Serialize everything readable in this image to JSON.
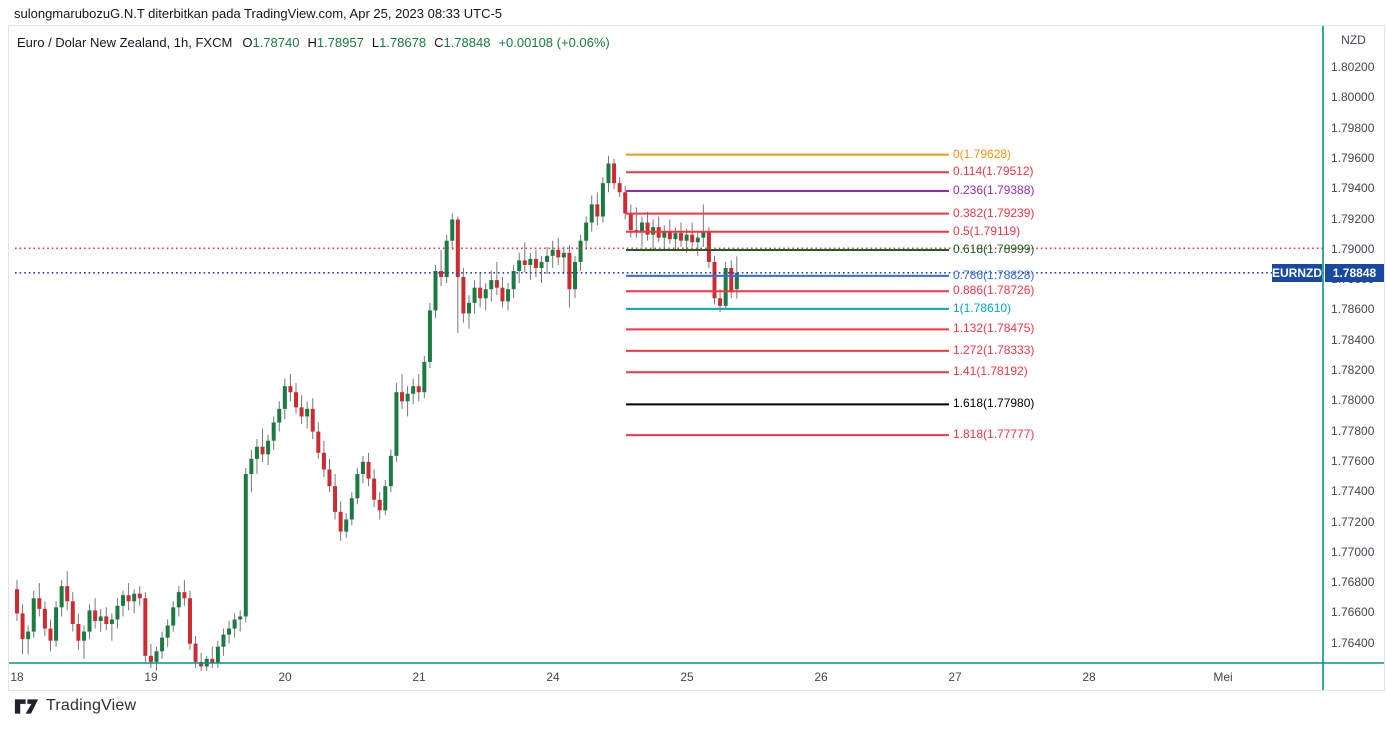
{
  "attribution": {
    "text": "sulongmarubozuG.N.T diterbitkan pada TradingView.com, Apr 25, 2023 08:33 UTC-5"
  },
  "header": {
    "symbol_title": "Euro / Dolar New Zealand, 1h, FXCM",
    "ohlc": {
      "o_label": "O",
      "o_value": "1.78740",
      "h_label": "H",
      "h_value": "1.78957",
      "l_label": "L",
      "l_value": "1.78678",
      "c_label": "C",
      "c_value": "1.78848",
      "change": "+0.00108 (+0.06%)"
    }
  },
  "price_axis": {
    "currency_label": "NZD",
    "tick_labels": [
      "1.80200",
      "1.80000",
      "1.79800",
      "1.79600",
      "1.79400",
      "1.79200",
      "1.79000",
      "1.78800",
      "1.78600",
      "1.78400",
      "1.78200",
      "1.78000",
      "1.77800",
      "1.77600",
      "1.77400",
      "1.77200",
      "1.77000",
      "1.76800",
      "1.76600",
      "1.76400"
    ]
  },
  "time_axis": {
    "tick_labels": [
      "18",
      "19",
      "20",
      "21",
      "24",
      "25",
      "26",
      "27",
      "28",
      "Mei"
    ]
  },
  "price_badge": {
    "symbol": "EURNZD",
    "price": "1.78848"
  },
  "logo": {
    "text": "TradingView"
  },
  "colors": {
    "up": "#1a7a42",
    "down": "#cc2b31",
    "wick": "#76787d",
    "axis_teal": "#009688",
    "badge_blue": "#1849a0",
    "text_dark": "#131722",
    "axis_text": "#434651"
  },
  "chart_data": {
    "type": "candlestick",
    "title": "Euro / Dolar New Zealand, 1h, FXCM",
    "symbol": "EURNZD",
    "exchange": "FXCM",
    "timeframe": "1h",
    "last_price": 1.78848,
    "y_axis": {
      "label": "NZD",
      "tick_min": 1.764,
      "tick_max": 1.802,
      "tick_step": 0.002,
      "grid": false
    },
    "x_axis": {
      "labels": [
        "18",
        "19",
        "20",
        "21",
        "24",
        "25",
        "26",
        "27",
        "28",
        "Mei"
      ],
      "bars_per_day": 24,
      "legend_position": "none"
    },
    "price_lines": [
      {
        "name": "red-dotted-price-line",
        "price": 1.7901,
        "color": "#e03c3c",
        "style": "dotted"
      },
      {
        "name": "current-price-line",
        "price": 1.78848,
        "color": "#2a3f9e",
        "style": "dotted"
      }
    ],
    "fib_levels": [
      {
        "level": "0",
        "price": "1.79628",
        "color": "#f39515"
      },
      {
        "level": "0.114",
        "price": "1.79512",
        "color": "#f23645"
      },
      {
        "level": "0.236",
        "price": "1.79388",
        "color": "#9c27b0"
      },
      {
        "level": "0.382",
        "price": "1.79239",
        "color": "#f23645"
      },
      {
        "level": "0.5",
        "price": "1.79119",
        "color": "#f23645"
      },
      {
        "level": "0.618",
        "price": "1.78999",
        "color": "#1b5e20"
      },
      {
        "level": "0.786",
        "price": "1.78828",
        "color": "#2f6ce5"
      },
      {
        "level": "0.886",
        "price": "1.78726",
        "color": "#f23645"
      },
      {
        "level": "1",
        "price": "1.78610",
        "color": "#00a7c4"
      },
      {
        "level": "1.132",
        "price": "1.78475",
        "color": "#f23645"
      },
      {
        "level": "1.272",
        "price": "1.78333",
        "color": "#f23645"
      },
      {
        "level": "1.41",
        "price": "1.78192",
        "color": "#f23645"
      },
      {
        "level": "1.618",
        "price": "1.77980",
        "color": "#000000"
      },
      {
        "level": "1.818",
        "price": "1.77777",
        "color": "#f23645"
      }
    ],
    "candles": [
      [
        1.7676,
        1.7682,
        1.7655,
        1.766
      ],
      [
        1.766,
        1.7666,
        1.7633,
        1.7643
      ],
      [
        1.7643,
        1.7652,
        1.7633,
        1.7648
      ],
      [
        1.7648,
        1.7675,
        1.7644,
        1.767
      ],
      [
        1.767,
        1.768,
        1.7658,
        1.7663
      ],
      [
        1.7663,
        1.7668,
        1.7645,
        1.765
      ],
      [
        1.765,
        1.7656,
        1.7635,
        1.7642
      ],
      [
        1.7642,
        1.7668,
        1.7638,
        1.7664
      ],
      [
        1.7664,
        1.7682,
        1.7658,
        1.7678
      ],
      [
        1.7678,
        1.7688,
        1.7662,
        1.7668
      ],
      [
        1.7668,
        1.7674,
        1.7648,
        1.7653
      ],
      [
        1.7653,
        1.766,
        1.7636,
        1.7642
      ],
      [
        1.7642,
        1.7652,
        1.763,
        1.7648
      ],
      [
        1.7648,
        1.7666,
        1.7643,
        1.7662
      ],
      [
        1.7662,
        1.767,
        1.765,
        1.7655
      ],
      [
        1.7655,
        1.7663,
        1.7648,
        1.7658
      ],
      [
        1.7658,
        1.7664,
        1.7649,
        1.7653
      ],
      [
        1.7653,
        1.766,
        1.7642,
        1.7656
      ],
      [
        1.7656,
        1.767,
        1.765,
        1.7665
      ],
      [
        1.7665,
        1.7675,
        1.7658,
        1.7672
      ],
      [
        1.7672,
        1.768,
        1.7662,
        1.7668
      ],
      [
        1.7668,
        1.7676,
        1.766,
        1.7673
      ],
      [
        1.7673,
        1.7678,
        1.7665,
        1.767
      ],
      [
        1.767,
        1.7674,
        1.7628,
        1.7632
      ],
      [
        1.7632,
        1.764,
        1.7624,
        1.7628
      ],
      [
        1.7628,
        1.7638,
        1.7622,
        1.7635
      ],
      [
        1.7635,
        1.7648,
        1.763,
        1.7644
      ],
      [
        1.7644,
        1.7656,
        1.7638,
        1.7652
      ],
      [
        1.7652,
        1.7668,
        1.7648,
        1.7664
      ],
      [
        1.7664,
        1.7678,
        1.7658,
        1.7674
      ],
      [
        1.7674,
        1.7682,
        1.7665,
        1.767
      ],
      [
        1.767,
        1.7675,
        1.7636,
        1.764
      ],
      [
        1.764,
        1.7645,
        1.7624,
        1.7628
      ],
      [
        1.7628,
        1.7634,
        1.7622,
        1.7625
      ],
      [
        1.7625,
        1.7632,
        1.7622,
        1.763
      ],
      [
        1.763,
        1.7638,
        1.7624,
        1.7627
      ],
      [
        1.7627,
        1.7642,
        1.7624,
        1.7638
      ],
      [
        1.7638,
        1.765,
        1.7632,
        1.7646
      ],
      [
        1.7646,
        1.7655,
        1.764,
        1.765
      ],
      [
        1.765,
        1.766,
        1.7644,
        1.7656
      ],
      [
        1.7656,
        1.7662,
        1.7648,
        1.7658
      ],
      [
        1.7658,
        1.7756,
        1.7654,
        1.7752
      ],
      [
        1.7752,
        1.7768,
        1.774,
        1.7762
      ],
      [
        1.7762,
        1.7775,
        1.7752,
        1.777
      ],
      [
        1.777,
        1.7782,
        1.776,
        1.7765
      ],
      [
        1.7765,
        1.7778,
        1.7758,
        1.7774
      ],
      [
        1.7774,
        1.779,
        1.7768,
        1.7786
      ],
      [
        1.7786,
        1.78,
        1.778,
        1.7795
      ],
      [
        1.7795,
        1.7815,
        1.7788,
        1.781
      ],
      [
        1.781,
        1.7818,
        1.78,
        1.7806
      ],
      [
        1.7806,
        1.7812,
        1.7792,
        1.7796
      ],
      [
        1.7796,
        1.7804,
        1.7785,
        1.779
      ],
      [
        1.779,
        1.78,
        1.7782,
        1.7795
      ],
      [
        1.7795,
        1.7802,
        1.7775,
        1.778
      ],
      [
        1.778,
        1.7786,
        1.7762,
        1.7766
      ],
      [
        1.7766,
        1.7774,
        1.775,
        1.7755
      ],
      [
        1.7755,
        1.7762,
        1.774,
        1.7744
      ],
      [
        1.7744,
        1.7752,
        1.7722,
        1.7727
      ],
      [
        1.7727,
        1.7734,
        1.7708,
        1.7714
      ],
      [
        1.7714,
        1.7726,
        1.771,
        1.7722
      ],
      [
        1.7722,
        1.774,
        1.7718,
        1.7736
      ],
      [
        1.7736,
        1.7756,
        1.7732,
        1.7752
      ],
      [
        1.7752,
        1.7764,
        1.7746,
        1.776
      ],
      [
        1.776,
        1.7766,
        1.7744,
        1.7749
      ],
      [
        1.7749,
        1.7755,
        1.773,
        1.7735
      ],
      [
        1.7735,
        1.774,
        1.7722,
        1.7728
      ],
      [
        1.7728,
        1.7748,
        1.7725,
        1.7744
      ],
      [
        1.7744,
        1.7768,
        1.774,
        1.7764
      ],
      [
        1.7764,
        1.7812,
        1.776,
        1.7806
      ],
      [
        1.7806,
        1.7818,
        1.7795,
        1.78
      ],
      [
        1.78,
        1.781,
        1.779,
        1.7805
      ],
      [
        1.7805,
        1.7815,
        1.7798,
        1.781
      ],
      [
        1.781,
        1.7818,
        1.78,
        1.7806
      ],
      [
        1.7806,
        1.783,
        1.7802,
        1.7826
      ],
      [
        1.7826,
        1.7865,
        1.7822,
        1.786
      ],
      [
        1.786,
        1.789,
        1.7855,
        1.7886
      ],
      [
        1.7886,
        1.79,
        1.7876,
        1.7882
      ],
      [
        1.7882,
        1.791,
        1.7878,
        1.7906
      ],
      [
        1.7906,
        1.7924,
        1.79,
        1.792
      ],
      [
        1.792,
        1.7922,
        1.7845,
        1.7882
      ],
      [
        1.7882,
        1.7888,
        1.7852,
        1.7858
      ],
      [
        1.7858,
        1.787,
        1.7848,
        1.7865
      ],
      [
        1.7865,
        1.788,
        1.7858,
        1.7875
      ],
      [
        1.7875,
        1.7885,
        1.7862,
        1.7868
      ],
      [
        1.7868,
        1.7878,
        1.786,
        1.7874
      ],
      [
        1.7874,
        1.7886,
        1.7866,
        1.788
      ],
      [
        1.788,
        1.7892,
        1.787,
        1.7875
      ],
      [
        1.7875,
        1.7882,
        1.7862,
        1.7866
      ],
      [
        1.7866,
        1.7878,
        1.786,
        1.7874
      ],
      [
        1.7874,
        1.789,
        1.7868,
        1.7886
      ],
      [
        1.7886,
        1.7898,
        1.7878,
        1.7893
      ],
      [
        1.7893,
        1.7905,
        1.7885,
        1.789
      ],
      [
        1.789,
        1.7898,
        1.788,
        1.7894
      ],
      [
        1.7894,
        1.79,
        1.7882,
        1.7888
      ],
      [
        1.7888,
        1.7896,
        1.7878,
        1.7892
      ],
      [
        1.7892,
        1.7902,
        1.7884,
        1.7896
      ],
      [
        1.7896,
        1.7906,
        1.7888,
        1.79
      ],
      [
        1.79,
        1.7908,
        1.789,
        1.7895
      ],
      [
        1.7895,
        1.7902,
        1.7884,
        1.7898
      ],
      [
        1.7898,
        1.7903,
        1.7862,
        1.7874
      ],
      [
        1.7874,
        1.7896,
        1.7868,
        1.7892
      ],
      [
        1.7892,
        1.791,
        1.7886,
        1.7906
      ],
      [
        1.7906,
        1.7922,
        1.79,
        1.7918
      ],
      [
        1.7918,
        1.7936,
        1.7912,
        1.793
      ],
      [
        1.793,
        1.7938,
        1.7916,
        1.7922
      ],
      [
        1.7922,
        1.7948,
        1.7918,
        1.7944
      ],
      [
        1.7944,
        1.7962,
        1.7938,
        1.7957
      ],
      [
        1.7957,
        1.796,
        1.794,
        1.7944
      ],
      [
        1.7944,
        1.7948,
        1.7935,
        1.7938
      ],
      [
        1.7938,
        1.7942,
        1.792,
        1.7924
      ],
      [
        1.7924,
        1.793,
        1.7908,
        1.7913
      ],
      [
        1.7913,
        1.7928,
        1.7908,
        1.7912
      ],
      [
        1.7912,
        1.7922,
        1.7902,
        1.7918
      ],
      [
        1.7918,
        1.7925,
        1.7906,
        1.791
      ],
      [
        1.791,
        1.792,
        1.79,
        1.7915
      ],
      [
        1.7915,
        1.7922,
        1.7905,
        1.7908
      ],
      [
        1.7908,
        1.7916,
        1.79,
        1.7912
      ],
      [
        1.7912,
        1.792,
        1.7904,
        1.7907
      ],
      [
        1.7907,
        1.7915,
        1.79,
        1.7911
      ],
      [
        1.7911,
        1.7918,
        1.7902,
        1.7906
      ],
      [
        1.7906,
        1.7914,
        1.7898,
        1.791
      ],
      [
        1.791,
        1.7918,
        1.7902,
        1.7905
      ],
      [
        1.7905,
        1.7912,
        1.7896,
        1.7908
      ],
      [
        1.7908,
        1.793,
        1.7902,
        1.7912
      ],
      [
        1.7912,
        1.7915,
        1.7888,
        1.7892
      ],
      [
        1.7892,
        1.7896,
        1.7864,
        1.7868
      ],
      [
        1.7868,
        1.7874,
        1.7859,
        1.7863
      ],
      [
        1.7863,
        1.7892,
        1.7861,
        1.7888
      ],
      [
        1.7888,
        1.7893,
        1.7868,
        1.7872
      ],
      [
        1.7874,
        1.78957,
        1.78678,
        1.78848
      ]
    ]
  }
}
